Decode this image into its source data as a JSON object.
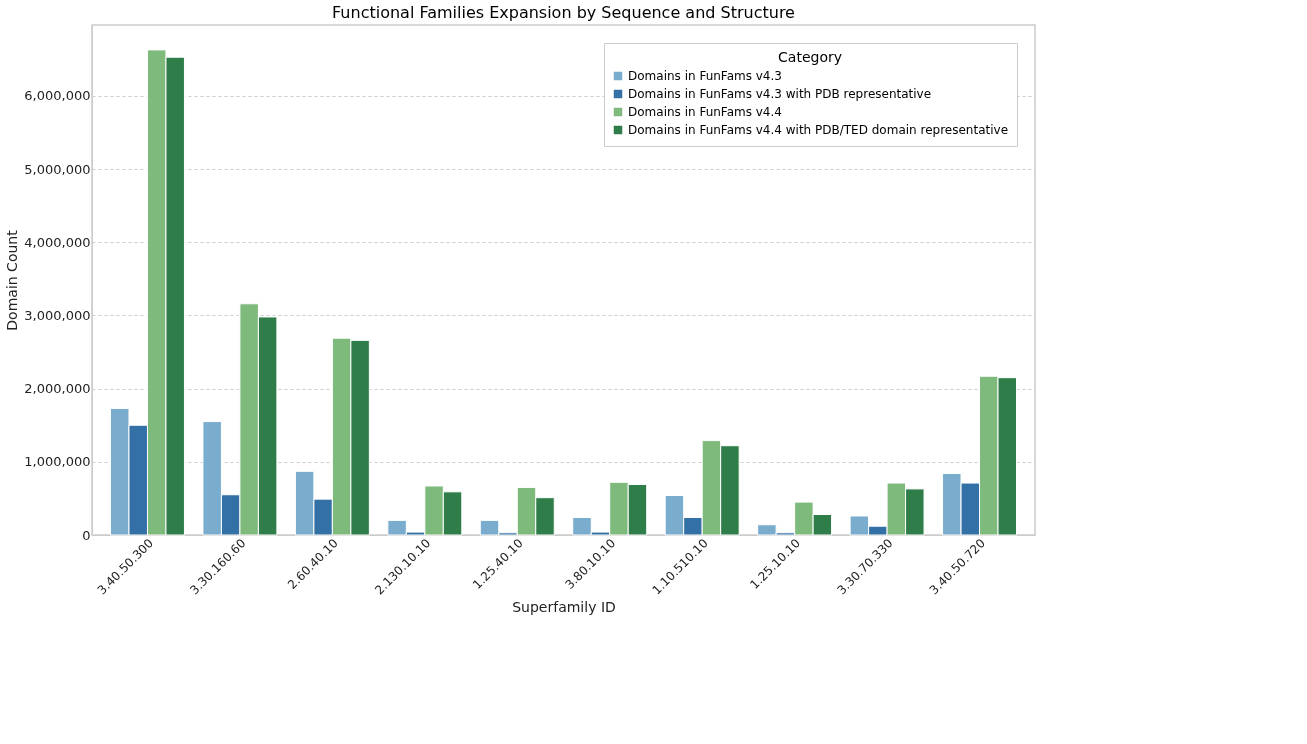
{
  "chart_data": {
    "type": "bar",
    "title": "Functional Families Expansion by Sequence and Structure",
    "xlabel": "Superfamily ID",
    "ylabel": "Domain Count",
    "legend_title": "Category",
    "categories": [
      "3.40.50.300",
      "3.30.160.60",
      "2.60.40.10",
      "2.130.10.10",
      "1.25.40.10",
      "3.80.10.10",
      "1.10.510.10",
      "1.25.10.10",
      "3.30.70.330",
      "3.40.50.720"
    ],
    "series": [
      {
        "name": "Domains in FunFams v4.3",
        "color": "#7aacce",
        "values": [
          1730000,
          1550000,
          870000,
          200000,
          200000,
          240000,
          540000,
          140000,
          260000,
          840000
        ]
      },
      {
        "name": "Domains in FunFams v4.3 with PDB representative",
        "color": "#3370a5",
        "values": [
          1500000,
          550000,
          490000,
          40000,
          30000,
          40000,
          240000,
          30000,
          120000,
          710000
        ]
      },
      {
        "name": "Domains in FunFams v4.4",
        "color": "#7fba7d",
        "values": [
          6630000,
          3160000,
          2690000,
          670000,
          650000,
          720000,
          1290000,
          450000,
          710000,
          2170000
        ]
      },
      {
        "name": "Domains in FunFams v4.4 with PDB/TED domain representative",
        "color": "#2f7e4a",
        "values": [
          6530000,
          2980000,
          2660000,
          590000,
          510000,
          690000,
          1220000,
          280000,
          630000,
          2150000
        ]
      }
    ],
    "ylim": [
      0,
      6970000
    ],
    "yticks": [
      {
        "value": 0,
        "label": "0"
      },
      {
        "value": 1000000,
        "label": "1,000,000"
      },
      {
        "value": 2000000,
        "label": "2,000,000"
      },
      {
        "value": 3000000,
        "label": "3,000,000"
      },
      {
        "value": 4000000,
        "label": "4,000,000"
      },
      {
        "value": 5000000,
        "label": "5,000,000"
      },
      {
        "value": 6000000,
        "label": "6,000,000"
      }
    ],
    "grid": "y",
    "legend": "top right"
  }
}
